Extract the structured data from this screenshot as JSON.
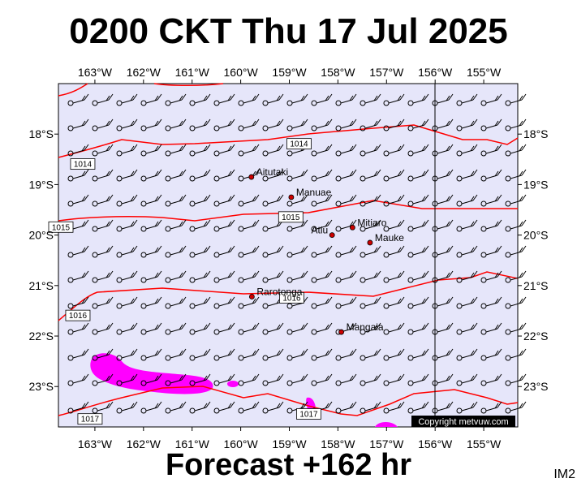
{
  "title": "0200 CKT Thu 17 Jul 2025",
  "footer": "Forecast +162 hr",
  "image_id": "IM2",
  "copyright": "Copyright metvuw.com",
  "colors": {
    "background": "#e6e6fa",
    "isobar": "#ff0000",
    "rain": "#ff00ff",
    "wind": "#000000",
    "island": "#cc0000"
  },
  "axes": {
    "lon_labels": [
      "163°W",
      "162°W",
      "161°W",
      "160°W",
      "159°W",
      "158°W",
      "157°W",
      "156°W",
      "155°W"
    ],
    "lat_labels": [
      "18°S",
      "19°S",
      "20°S",
      "21°S",
      "22°S",
      "23°S"
    ],
    "lon_values": [
      -163,
      -162,
      -161,
      -160,
      -159,
      -158,
      -157,
      -156,
      -155
    ],
    "lat_values": [
      -18,
      -19,
      -20,
      -21,
      -22,
      -23
    ],
    "lon_range": [
      -163.75,
      -154.3
    ],
    "lat_range": [
      -23.8,
      -17.0
    ],
    "reference_meridian": -156
  },
  "places": [
    {
      "name": "Aitutaki",
      "lon": -159.78,
      "lat": -18.85
    },
    {
      "name": "Manuae",
      "lon": -158.96,
      "lat": -19.25
    },
    {
      "name": "Mitiaro",
      "lon": -157.7,
      "lat": -19.85
    },
    {
      "name": "Atiu",
      "lon": -158.12,
      "lat": -20.0
    },
    {
      "name": "Mauke",
      "lon": -157.34,
      "lat": -20.15
    },
    {
      "name": "Rarotonga",
      "lon": -159.77,
      "lat": -21.22
    },
    {
      "name": "Mangaia",
      "lon": -157.93,
      "lat": -21.92
    }
  ],
  "isobars": [
    {
      "label": "1014",
      "label_pos": [
        -163.25,
        -18.6
      ],
      "label_pos2": [
        -158.8,
        -18.2
      ]
    },
    {
      "label": "1015",
      "label_pos": [
        -163.7,
        -19.85
      ],
      "label_pos2": [
        -158.97,
        -19.65
      ]
    },
    {
      "label": "1016",
      "label_pos": [
        -163.35,
        -21.6
      ],
      "label_pos2": [
        -158.95,
        -21.25
      ]
    },
    {
      "label": "1017",
      "label_pos": [
        -163.1,
        -23.65
      ],
      "label_pos2": [
        -158.6,
        -23.55
      ]
    }
  ]
}
